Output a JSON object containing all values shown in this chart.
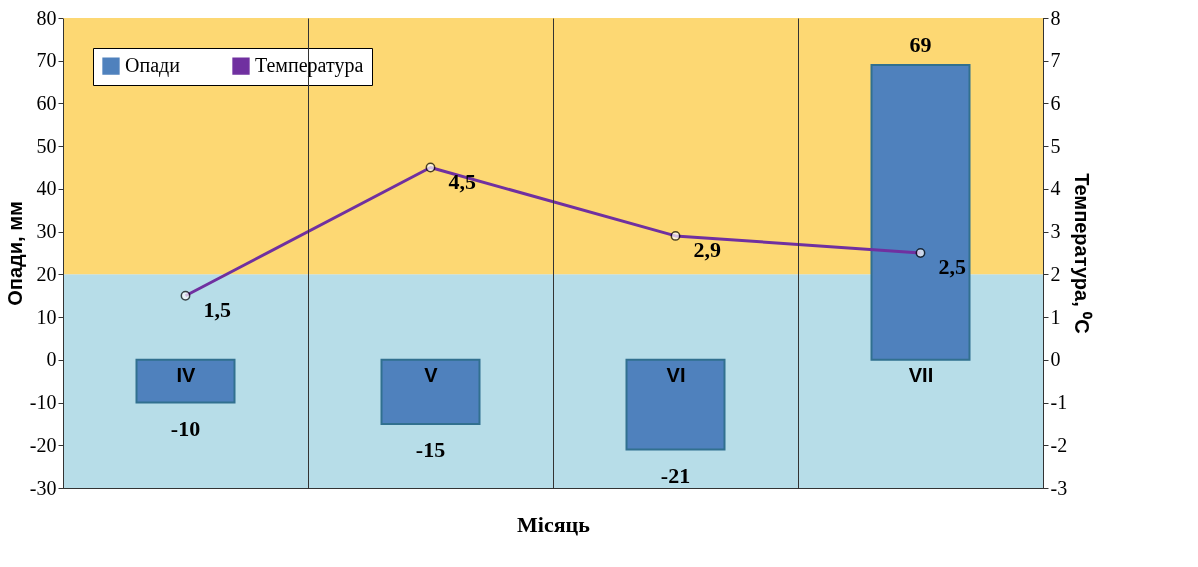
{
  "chart_data": {
    "type": "bar",
    "categories": [
      "IV",
      "V",
      "VI",
      "VII"
    ],
    "xlabel": "Місяць",
    "ylabel": "Опади, мм",
    "y2label": "Температура, ⁰C",
    "series": [
      {
        "name": "Опади",
        "color": "#4f81bd",
        "values": [
          -10,
          -15,
          -21,
          69
        ],
        "value_labels": [
          "-10",
          "-15",
          "-21",
          "69"
        ]
      },
      {
        "name": "Температура",
        "type": "line",
        "axis": "y2",
        "color": "#7030a0",
        "values": [
          1.5,
          4.5,
          2.9,
          2.5
        ],
        "value_labels": [
          "1,5",
          "4,5",
          "2,9",
          "2,5"
        ]
      }
    ],
    "ylim": [
      -30,
      80
    ],
    "yticks": [
      -30,
      -20,
      -10,
      0,
      10,
      20,
      30,
      40,
      50,
      60,
      70,
      80
    ],
    "y2lim": [
      -3,
      8
    ],
    "y2ticks": [
      -3,
      -2,
      -1,
      0,
      1,
      2,
      3,
      4,
      5,
      6,
      7,
      8
    ],
    "bands": [
      {
        "axis": "y",
        "from": -30,
        "to": 20,
        "color": "#b7dde8"
      },
      {
        "axis": "y",
        "from": 20,
        "to": 80,
        "color": "#fdd873"
      }
    ],
    "grid": "x",
    "legend": "top left",
    "marker": "circle",
    "line_style": "solid"
  }
}
